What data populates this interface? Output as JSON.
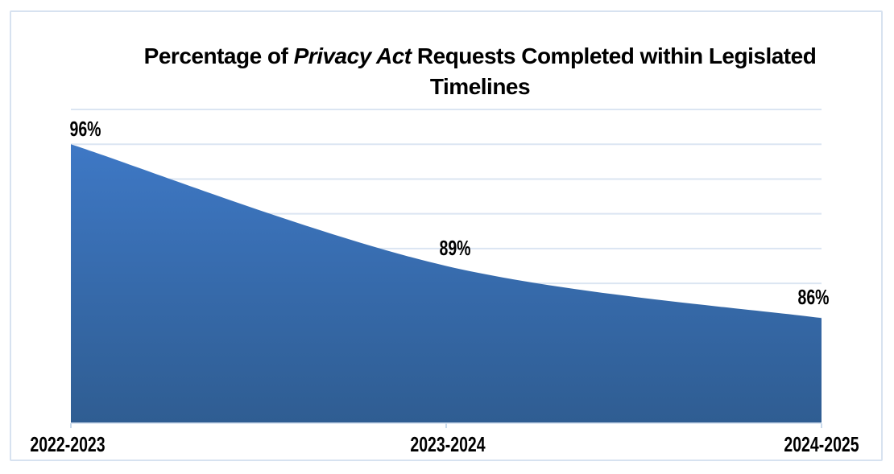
{
  "title": {
    "part1": "Percentage of ",
    "italic": "Privacy Act",
    "part2": " Requests Completed within Legislated Timelines"
  },
  "chart_data": {
    "type": "area",
    "title": "Percentage of Privacy Act Requests Completed within Legislated Timelines",
    "categories": [
      "2022-2023",
      "2023-2024",
      "2024-2025"
    ],
    "values": [
      96,
      89,
      86
    ],
    "data_labels": [
      "96%",
      "89%",
      "86%"
    ],
    "xlabel": "",
    "ylabel": "",
    "ylim": [
      80,
      98
    ],
    "grid_step": 2,
    "gridlines": "horizontal",
    "y_axis_labels_shown": false,
    "legend": "none",
    "smooth_line": true,
    "colors": {
      "area_gradient_top": "#3E78C5",
      "area_gradient_bottom": "#2F5D92",
      "gridline": "#DBE5F2",
      "axis_line": "#DBE5F2",
      "tick": "#C9DAEC",
      "frame_border": "#D7E2F0",
      "label_text": "#000000",
      "background": "#FFFFFF"
    }
  }
}
